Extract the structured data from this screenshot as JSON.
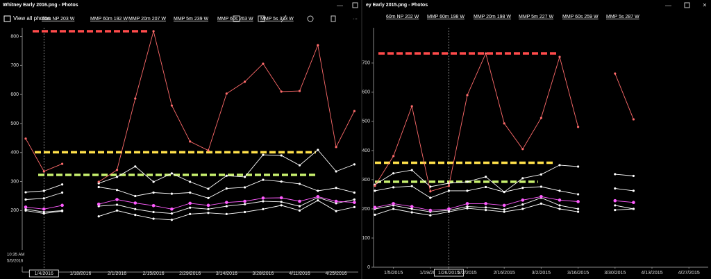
{
  "windows": [
    {
      "title": "Whitney Early 2016.png - Photos",
      "toolbar": "View all photos",
      "clock": [
        "10:35 AM",
        "5/5/2016"
      ]
    },
    {
      "title": "ey Early 2015.png - Photos"
    }
  ],
  "chart_data": [
    {
      "type": "line",
      "categories": [
        null,
        "1/4/2016",
        null,
        "1/18/2016",
        null,
        "2/1/2016",
        null,
        "2/15/2016",
        null,
        "2/29/2016",
        null,
        "3/14/2016",
        null,
        "3/28/2016",
        null,
        "4/11/2016",
        null,
        "4/25/2016",
        null
      ],
      "ylim": [
        0,
        830
      ],
      "yticks": [
        200,
        300,
        400,
        500,
        600,
        700,
        800
      ],
      "highlight_category": "1/4/2016",
      "series": [
        {
          "name": "60m NP 203 W",
          "color": "#ffffff",
          "values": [
            200,
            190,
            198,
            null,
            180,
            200,
            185,
            172,
            168,
            188,
            192,
            188,
            195,
            205,
            218,
            200,
            235,
            198,
            212
          ]
        },
        {
          "name": "MMP 60m 192 W",
          "color": "#ffffff",
          "values": [
            205,
            195,
            200,
            null,
            215,
            220,
            205,
            195,
            190,
            210,
            205,
            215,
            222,
            232,
            230,
            215,
            245,
            225,
            238
          ]
        },
        {
          "name": "MMP 20m 207 W",
          "color": "#ff5cff",
          "values": [
            212,
            205,
            218,
            null,
            222,
            238,
            226,
            217,
            205,
            225,
            218,
            228,
            232,
            243,
            244,
            232,
            248,
            232,
            228
          ]
        },
        {
          "name": "MMP 5m 239 W",
          "color": "#ffffff",
          "values": [
            238,
            242,
            262,
            null,
            281,
            271,
            250,
            262,
            258,
            262,
            243,
            276,
            280,
            306,
            300,
            292,
            268,
            278,
            262
          ]
        },
        {
          "name": "MMP 60s 263 W",
          "color": "#ffffff",
          "values": [
            263,
            268,
            290,
            null,
            294,
            316,
            352,
            299,
            328,
            299,
            275,
            320,
            316,
            392,
            390,
            356,
            409,
            335,
            359
          ]
        },
        {
          "name": "MMP 5s 333 W",
          "color": "#ff6b6b",
          "values": [
            448,
            335,
            361,
            null,
            299,
            340,
            586,
            818,
            562,
            438,
            407,
            603,
            644,
            706,
            610,
            612,
            770,
            419,
            543
          ]
        }
      ],
      "reference_lines": [
        {
          "value": 818,
          "color": "#ff4b4b"
        },
        {
          "value": 401,
          "color": "#ffe14b"
        },
        {
          "value": 323,
          "color": "#c8f06e"
        }
      ]
    },
    {
      "type": "line",
      "categories": [
        null,
        "1/5/2015",
        null,
        "1/19/2015",
        "1/26/2015",
        "2/2/2015",
        null,
        "2/16/2015",
        null,
        "3/2/2015",
        null,
        "3/16/2015",
        null,
        "3/30/2015",
        null,
        "4/13/2015",
        null,
        "4/27/2015"
      ],
      "ylim": [
        0,
        821
      ],
      "yticks": [
        0,
        100,
        200,
        300,
        400,
        500,
        600,
        700
      ],
      "highlight_category": "1/26/2015",
      "series": [
        {
          "name": "60m NP 202 W",
          "color": "#ffffff",
          "values": [
            180,
            200,
            188,
            178,
            190,
            202,
            196,
            190,
            200,
            218,
            200,
            190,
            null,
            196,
            200,
            null,
            null,
            null
          ]
        },
        {
          "name": "MMP 60m 198 W",
          "color": "#ffffff",
          "values": [
            200,
            212,
            200,
            190,
            195,
            208,
            205,
            198,
            215,
            238,
            212,
            200,
            null,
            212,
            200,
            null,
            null,
            null
          ]
        },
        {
          "name": "MMP 20m 198 W",
          "color": "#ff5cff",
          "values": [
            205,
            218,
            208,
            195,
            200,
            218,
            218,
            212,
            230,
            242,
            230,
            225,
            null,
            228,
            222,
            null,
            null,
            null
          ]
        },
        {
          "name": "MMP 5m 227 W",
          "color": "#ffffff",
          "values": [
            262,
            274,
            278,
            238,
            262,
            262,
            275,
            258,
            272,
            276,
            262,
            250,
            null,
            270,
            262,
            null,
            null,
            null
          ]
        },
        {
          "name": "MMP 60s 259 W",
          "color": "#ffffff",
          "values": [
            283,
            322,
            333,
            276,
            288,
            293,
            310,
            258,
            305,
            318,
            350,
            345,
            null,
            319,
            313,
            null,
            null,
            null
          ]
        },
        {
          "name": "MMP 5s 287 W",
          "color": "#ff6b6b",
          "values": [
            279,
            381,
            552,
            260,
            279,
            590,
            733,
            493,
            405,
            512,
            721,
            481,
            null,
            664,
            507,
            null,
            null,
            null
          ]
        }
      ],
      "reference_lines": [
        {
          "value": 733,
          "color": "#ff4b4b"
        },
        {
          "value": 358,
          "color": "#ffe14b"
        },
        {
          "value": 293,
          "color": "#c8f06e"
        }
      ]
    }
  ]
}
